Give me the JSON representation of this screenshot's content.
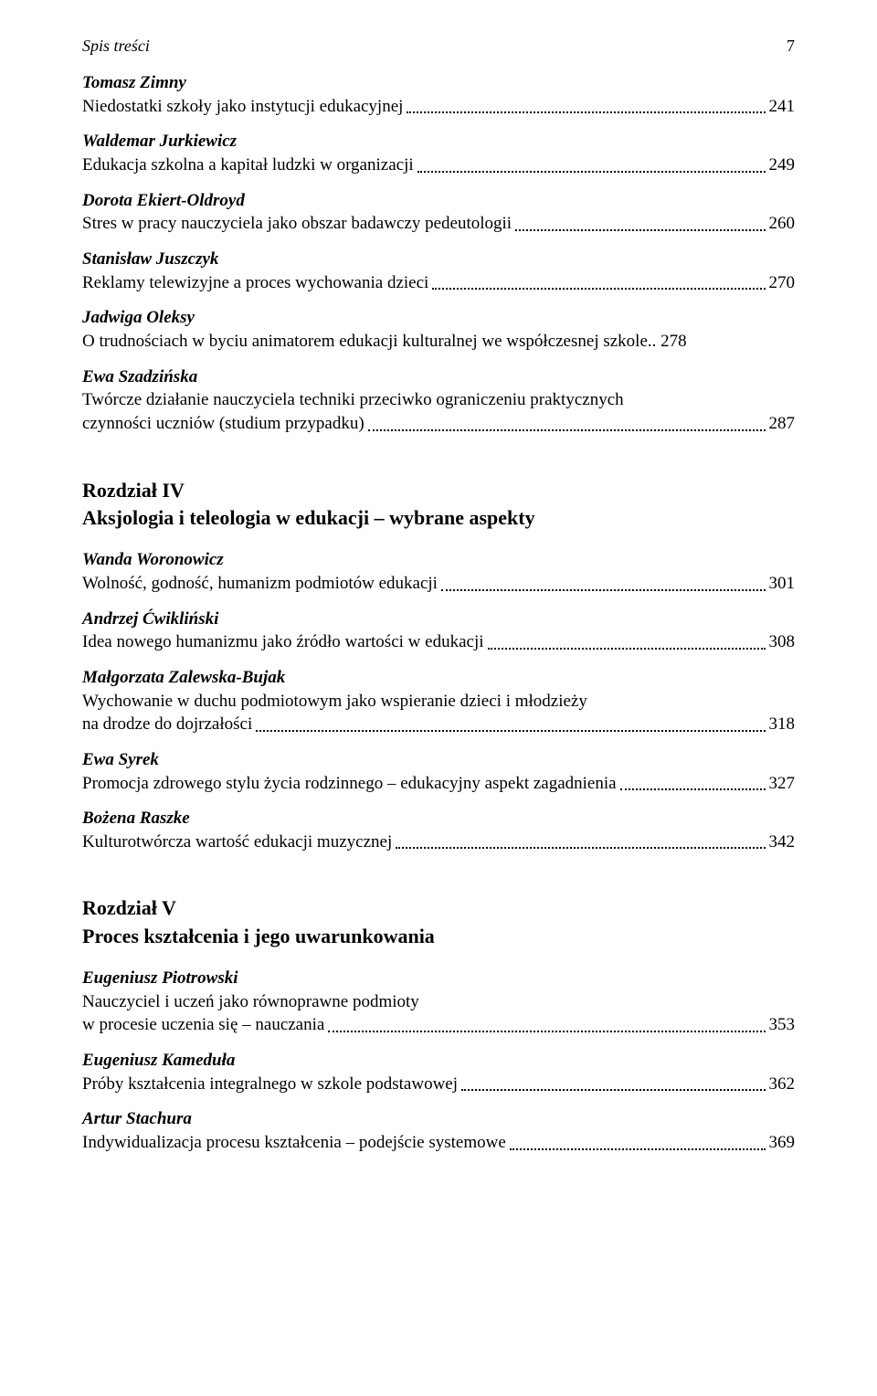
{
  "header": {
    "title": "Spis treści",
    "page": "7"
  },
  "entries_top": [
    {
      "author": "Tomasz Zimny",
      "lines": [
        "Niedostatki szkoły jako instytucji edukacyjnej"
      ],
      "page": "241"
    },
    {
      "author": "Waldemar Jurkiewicz",
      "lines": [
        "Edukacja szkolna a kapitał ludzki w organizacji"
      ],
      "page": "249"
    },
    {
      "author": "Dorota Ekiert-Oldroyd",
      "lines": [
        "Stres w pracy nauczyciela jako obszar badawczy pedeutologii"
      ],
      "page": "260"
    },
    {
      "author": "Stanisław Juszczyk",
      "lines": [
        "Reklamy telewizyjne a proces wychowania dzieci"
      ],
      "page": "270"
    },
    {
      "author": "Jadwiga Oleksy",
      "lines": [
        "O trudnościach w byciu animatorem edukacji kulturalnej we współczesnej szkole"
      ],
      "page": "278",
      "tight": true
    },
    {
      "author": "Ewa Szadzińska",
      "lines": [
        "Twórcze działanie nauczyciela techniki przeciwko ograniczeniu praktycznych",
        "czynności uczniów (studium przypadku)"
      ],
      "page": "287"
    }
  ],
  "chapter_iv": {
    "num": "Rozdział IV",
    "title": "Aksjologia i teleologia w edukacji – wybrane aspekty"
  },
  "entries_iv": [
    {
      "author": "Wanda Woronowicz",
      "lines": [
        "Wolność, godność, humanizm podmiotów edukacji"
      ],
      "page": "301"
    },
    {
      "author": "Andrzej Ćwikliński",
      "lines": [
        "Idea nowego humanizmu jako źródło wartości w edukacji"
      ],
      "page": "308"
    },
    {
      "author": "Małgorzata Zalewska-Bujak",
      "lines": [
        "Wychowanie w duchu podmiotowym jako wspieranie dzieci i młodzieży",
        "na drodze do dojrzałości"
      ],
      "page": "318"
    },
    {
      "author": "Ewa Syrek",
      "lines": [
        "Promocja zdrowego stylu życia rodzinnego – edukacyjny aspekt zagadnienia"
      ],
      "page": "327"
    },
    {
      "author": "Bożena Raszke",
      "lines": [
        "Kulturotwórcza wartość edukacji muzycznej"
      ],
      "page": "342"
    }
  ],
  "chapter_v": {
    "num": "Rozdział V",
    "title": "Proces kształcenia i jego uwarunkowania"
  },
  "entries_v": [
    {
      "author": "Eugeniusz Piotrowski",
      "lines": [
        "Nauczyciel i uczeń jako równoprawne podmioty",
        "w procesie uczenia się – nauczania"
      ],
      "page": "353"
    },
    {
      "author": "Eugeniusz Kameduła",
      "lines": [
        "Próby kształcenia integralnego w szkole podstawowej"
      ],
      "page": "362"
    },
    {
      "author": "Artur Stachura",
      "lines": [
        "Indywidualizacja procesu kształcenia – podejście systemowe"
      ],
      "page": "369"
    }
  ]
}
